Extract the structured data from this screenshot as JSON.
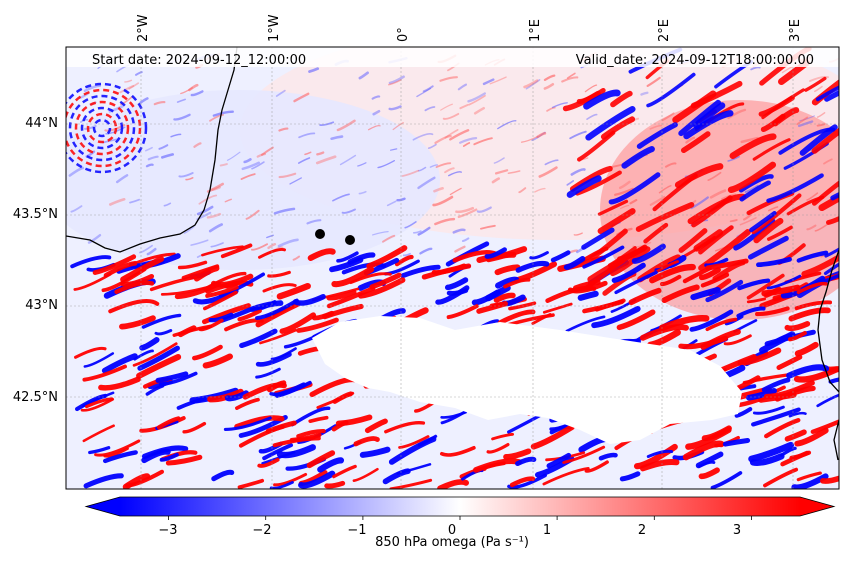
{
  "header": {
    "start_text": "Start date: 2024-09-12_12:00:00",
    "valid_text": "Valid_date: 2024-09-12T18:00:00.00"
  },
  "map": {
    "lon_labels": [
      "2°W",
      "1°W",
      "0°",
      "1°E",
      "2°E",
      "3°E"
    ],
    "lat_labels": [
      "44°N",
      "43.5°N",
      "43°N",
      "42.5°N"
    ],
    "markers": [
      {
        "name": "point-marker-1",
        "color": "#000000"
      },
      {
        "name": "point-marker-2",
        "color": "#000000"
      }
    ],
    "coastline_color": "#000000",
    "gridlines": true
  },
  "colorbar": {
    "label": "850 hPa omega (Pa s⁻¹)",
    "ticks": [
      "−3",
      "−2",
      "−1",
      "0",
      "1",
      "2",
      "3"
    ],
    "colors": {
      "negative": "#0000ff",
      "zero": "#ffffff",
      "positive": "#ff0000"
    },
    "extend": "both"
  },
  "chart_data": {
    "type": "heatmap",
    "variable": "850 hPa omega",
    "units": "Pa s⁻¹",
    "vmin": -3.5,
    "vmax": 3.5,
    "colormap": "bwr",
    "lon_range": [
      -2.6,
      3.3
    ],
    "lat_range": [
      42.0,
      44.4
    ],
    "lon_ticks": [
      -2,
      -1,
      0,
      1,
      2,
      3
    ],
    "lat_ticks": [
      42.5,
      43.0,
      43.5,
      44.0
    ],
    "colorbar_ticks": [
      -3,
      -2,
      -1,
      0,
      1,
      2,
      3
    ],
    "markers": [
      {
        "lon": -0.63,
        "lat": 43.38
      },
      {
        "lon": -0.39,
        "lat": 43.35
      }
    ]
  }
}
